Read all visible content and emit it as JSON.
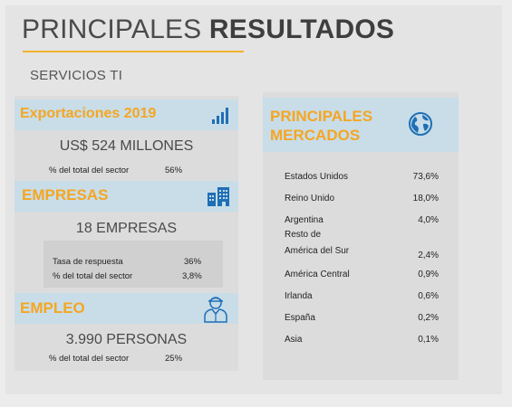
{
  "header": {
    "title_light": "PRINCIPALES",
    "title_bold": "RESULTADOS",
    "subtitle": "SERVICIOS TI"
  },
  "colors": {
    "accent": "#f5a623",
    "header_band": "#c8dde8",
    "icon_blue": "#1f6fb5"
  },
  "exports": {
    "title": "Exportaciones 2019",
    "icon": "bar-chart-icon",
    "amount": "US$ 524 MILLONES",
    "share_label": "% del total del sector",
    "share_value": "56%"
  },
  "companies": {
    "title": "EMPRESAS",
    "icon": "buildings-icon",
    "count": "18 EMPRESAS",
    "response_label": "Tasa de respuesta",
    "response_value": "36%",
    "share_label": "% del total del sector",
    "share_value": "3,8%"
  },
  "employment": {
    "title": "EMPLEO",
    "icon": "worker-icon",
    "count": "3.990 PERSONAS",
    "share_label": "% del total del sector",
    "share_value": "25%"
  },
  "markets": {
    "title_line1": "PRINCIPALES",
    "title_line2": "MERCADOS",
    "icon": "globe-icon",
    "rows": [
      {
        "name": "Estados Unidos",
        "value": "73,6%"
      },
      {
        "name": "Reino Unido",
        "value": "18,0%"
      },
      {
        "name": "Argentina",
        "value": "4,0%"
      },
      {
        "name": "Resto de",
        "value": ""
      },
      {
        "name": "América del Sur",
        "value": "2,4%"
      },
      {
        "name": "América Central",
        "value": "0,9%"
      },
      {
        "name": "Irlanda",
        "value": "0,6%"
      },
      {
        "name": "España",
        "value": "0,2%"
      },
      {
        "name": "Asia",
        "value": "0,1%"
      }
    ]
  }
}
